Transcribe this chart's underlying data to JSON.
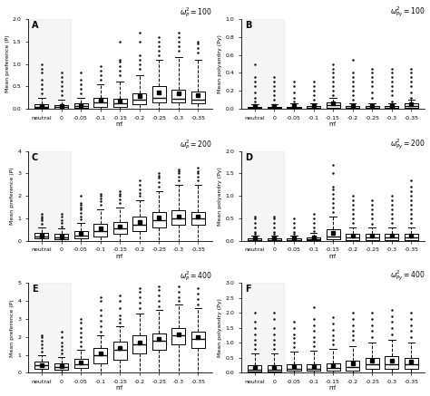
{
  "panels": [
    {
      "label": "A",
      "title": "$\\omega_P^2 = 100$",
      "ylabel": "Mean preference (P)",
      "ylim": [
        0,
        2.0
      ],
      "yticks": [
        0,
        0.5,
        1.0,
        1.5,
        2.0
      ]
    },
    {
      "label": "B",
      "title": "$\\omega_{Py}^2 = 100$",
      "ylabel": "Mean polyandry (Py)",
      "ylim": [
        0,
        1.0
      ],
      "yticks": [
        0.0,
        0.2,
        0.4,
        0.6,
        0.8,
        1.0
      ]
    },
    {
      "label": "C",
      "title": "$\\omega_P^2 = 200$",
      "ylabel": "Mean preference (P)",
      "ylim": [
        0,
        4.0
      ],
      "yticks": [
        0,
        1,
        2,
        3,
        4
      ]
    },
    {
      "label": "D",
      "title": "$\\omega_{Py}^2 = 200$",
      "ylabel": "Mean polyandry (Py)",
      "ylim": [
        0,
        2.0
      ],
      "yticks": [
        0.0,
        0.5,
        1.0,
        1.5,
        2.0
      ]
    },
    {
      "label": "E",
      "title": "$\\omega_P^2 = 400$",
      "ylabel": "Mean preference (P)",
      "ylim": [
        0,
        5.0
      ],
      "yticks": [
        0,
        1,
        2,
        3,
        4,
        5
      ]
    },
    {
      "label": "F",
      "title": "$\\omega_{Py}^2 = 400$",
      "ylabel": "Mean polyandry (Py)",
      "ylim": [
        0,
        3.0
      ],
      "yticks": [
        0.0,
        0.5,
        1.0,
        1.5,
        2.0,
        2.5,
        3.0
      ]
    }
  ],
  "categories": [
    "neutral",
    "0",
    "-0.05",
    "-0.1",
    "-0.15",
    "-0.2",
    "-0.25",
    "-0.3",
    "-0.35"
  ],
  "xlabel": "m'",
  "panel_data": {
    "A": {
      "medians": [
        0.05,
        0.04,
        0.06,
        0.15,
        0.12,
        0.2,
        0.25,
        0.22,
        0.2
      ],
      "q1": [
        0.02,
        0.01,
        0.02,
        0.05,
        0.05,
        0.1,
        0.15,
        0.15,
        0.13
      ],
      "q3": [
        0.1,
        0.08,
        0.12,
        0.25,
        0.22,
        0.35,
        0.5,
        0.42,
        0.38
      ],
      "whislo": [
        0.0,
        0.0,
        0.0,
        0.0,
        0.0,
        0.0,
        0.0,
        0.0,
        0.0
      ],
      "whishi": [
        0.25,
        0.2,
        0.25,
        0.55,
        0.6,
        0.75,
        1.1,
        1.15,
        1.1
      ],
      "means": [
        0.07,
        0.06,
        0.08,
        0.2,
        0.18,
        0.28,
        0.36,
        0.34,
        0.3
      ],
      "fliers_y": [
        [
          0.35,
          0.45,
          0.55,
          0.65,
          0.8,
          0.9,
          1.0
        ],
        [
          0.3,
          0.4,
          0.5,
          0.6,
          0.7,
          0.8
        ],
        [
          0.35,
          0.45,
          0.55,
          0.65,
          0.8
        ],
        [
          0.65,
          0.75,
          0.85,
          0.95
        ],
        [
          0.75,
          0.85,
          0.95,
          1.05,
          1.1,
          1.5
        ],
        [
          0.9,
          1.0,
          1.1,
          1.2,
          1.5,
          1.7
        ],
        [
          1.2,
          1.3,
          1.4,
          1.5,
          1.6
        ],
        [
          1.3,
          1.4,
          1.5,
          1.6,
          1.7
        ],
        [
          1.25,
          1.35,
          1.45,
          1.5
        ]
      ]
    },
    "B": {
      "medians": [
        0.01,
        0.01,
        0.01,
        0.01,
        0.04,
        0.01,
        0.01,
        0.01,
        0.03
      ],
      "q1": [
        0.0,
        0.0,
        0.0,
        0.0,
        0.01,
        0.0,
        0.0,
        0.0,
        0.01
      ],
      "q3": [
        0.02,
        0.02,
        0.02,
        0.03,
        0.07,
        0.03,
        0.03,
        0.03,
        0.06
      ],
      "whislo": [
        0.0,
        0.0,
        0.0,
        0.0,
        0.0,
        0.0,
        0.0,
        0.0,
        0.0
      ],
      "whishi": [
        0.05,
        0.05,
        0.06,
        0.06,
        0.12,
        0.06,
        0.06,
        0.06,
        0.1
      ],
      "means": [
        0.03,
        0.03,
        0.03,
        0.03,
        0.06,
        0.03,
        0.03,
        0.03,
        0.05
      ],
      "fliers_y": [
        [
          0.08,
          0.12,
          0.18,
          0.25,
          0.3,
          0.35,
          0.5
        ],
        [
          0.1,
          0.15,
          0.2,
          0.25,
          0.3,
          0.35
        ],
        [
          0.08,
          0.12,
          0.18,
          0.25,
          0.3
        ],
        [
          0.1,
          0.15,
          0.2,
          0.25,
          0.3
        ],
        [
          0.15,
          0.2,
          0.25,
          0.3,
          0.35,
          0.4,
          0.45,
          0.5
        ],
        [
          0.1,
          0.15,
          0.2,
          0.25,
          0.3,
          0.35,
          0.4,
          0.55
        ],
        [
          0.12,
          0.18,
          0.25,
          0.3,
          0.35,
          0.4,
          0.45
        ],
        [
          0.08,
          0.15,
          0.2,
          0.25,
          0.3,
          0.35,
          0.4,
          0.45
        ],
        [
          0.12,
          0.18,
          0.25,
          0.3,
          0.35,
          0.4,
          0.45
        ]
      ]
    },
    "C": {
      "medians": [
        0.2,
        0.15,
        0.25,
        0.45,
        0.55,
        0.7,
        0.9,
        1.0,
        1.0
      ],
      "q1": [
        0.1,
        0.08,
        0.12,
        0.2,
        0.3,
        0.45,
        0.6,
        0.7,
        0.7
      ],
      "q3": [
        0.35,
        0.3,
        0.45,
        0.75,
        0.85,
        1.1,
        1.3,
        1.35,
        1.3
      ],
      "whislo": [
        0.0,
        0.0,
        0.0,
        0.0,
        0.0,
        0.0,
        0.0,
        0.0,
        0.0
      ],
      "whishi": [
        0.6,
        0.55,
        0.8,
        1.4,
        1.5,
        1.8,
        2.2,
        2.5,
        2.5
      ],
      "means": [
        0.25,
        0.2,
        0.32,
        0.55,
        0.65,
        0.82,
        1.02,
        1.1,
        1.08
      ],
      "fliers_y": [
        [
          0.75,
          0.9,
          1.0,
          1.1,
          1.2
        ],
        [
          0.65,
          0.8,
          0.9,
          1.1,
          1.2
        ],
        [
          0.95,
          1.1,
          1.25,
          1.4,
          1.5,
          1.6,
          1.7,
          2.0
        ],
        [
          1.6,
          1.75,
          1.9,
          2.0,
          2.1
        ],
        [
          1.7,
          1.85,
          2.0,
          2.1,
          2.2
        ],
        [
          2.0,
          2.15,
          2.3,
          2.5,
          2.7
        ],
        [
          2.4,
          2.6,
          2.8,
          2.9,
          3.0
        ],
        [
          2.7,
          2.85,
          3.0,
          3.1,
          3.2
        ],
        [
          2.7,
          2.85,
          3.0,
          3.1,
          3.25
        ]
      ]
    },
    "D": {
      "medians": [
        0.02,
        0.02,
        0.02,
        0.03,
        0.1,
        0.08,
        0.08,
        0.08,
        0.08
      ],
      "q1": [
        0.01,
        0.01,
        0.01,
        0.01,
        0.03,
        0.02,
        0.02,
        0.02,
        0.02
      ],
      "q3": [
        0.05,
        0.05,
        0.05,
        0.08,
        0.25,
        0.15,
        0.15,
        0.15,
        0.15
      ],
      "whislo": [
        0.0,
        0.0,
        0.0,
        0.0,
        0.0,
        0.0,
        0.0,
        0.0,
        0.0
      ],
      "whishi": [
        0.12,
        0.12,
        0.12,
        0.18,
        0.55,
        0.3,
        0.3,
        0.3,
        0.3
      ],
      "means": [
        0.05,
        0.05,
        0.05,
        0.08,
        0.18,
        0.12,
        0.12,
        0.12,
        0.12
      ],
      "fliers_y": [
        [
          0.15,
          0.2,
          0.3,
          0.4,
          0.5,
          0.55
        ],
        [
          0.15,
          0.2,
          0.3,
          0.4,
          0.5,
          0.55
        ],
        [
          0.15,
          0.2,
          0.3,
          0.4,
          0.5
        ],
        [
          0.22,
          0.3,
          0.4,
          0.5,
          0.6
        ],
        [
          0.65,
          0.75,
          0.85,
          0.95,
          1.05,
          1.15,
          1.2,
          1.5,
          1.7
        ],
        [
          0.4,
          0.5,
          0.6,
          0.7,
          0.8,
          0.9,
          1.0
        ],
        [
          0.38,
          0.5,
          0.6,
          0.7,
          0.8,
          0.9
        ],
        [
          0.4,
          0.5,
          0.6,
          0.7,
          0.8,
          0.9,
          1.0
        ],
        [
          0.4,
          0.5,
          0.6,
          0.7,
          0.8,
          0.9,
          1.0,
          1.1,
          1.2,
          1.35
        ]
      ]
    },
    "E": {
      "medians": [
        0.4,
        0.3,
        0.5,
        1.0,
        1.3,
        1.6,
        1.8,
        2.1,
        1.9
      ],
      "q1": [
        0.2,
        0.15,
        0.25,
        0.55,
        0.75,
        1.1,
        1.3,
        1.6,
        1.4
      ],
      "q3": [
        0.65,
        0.55,
        0.8,
        1.4,
        1.75,
        2.1,
        2.2,
        2.5,
        2.3
      ],
      "whislo": [
        0.0,
        0.0,
        0.0,
        0.0,
        0.0,
        0.0,
        0.0,
        0.0,
        0.0
      ],
      "whishi": [
        1.0,
        0.9,
        1.3,
        2.1,
        2.6,
        3.3,
        3.5,
        3.8,
        3.6
      ],
      "means": [
        0.45,
        0.35,
        0.6,
        1.1,
        1.4,
        1.7,
        1.9,
        2.15,
        2.0
      ],
      "fliers_y": [
        [
          1.2,
          1.4,
          1.6,
          1.8,
          2.0,
          2.1
        ],
        [
          1.1,
          1.3,
          1.5,
          1.7,
          2.0,
          2.3
        ],
        [
          1.5,
          1.75,
          2.0,
          2.25,
          2.5,
          2.8,
          3.0
        ],
        [
          2.3,
          2.6,
          2.9,
          3.2,
          3.5,
          4.0,
          4.2
        ],
        [
          2.8,
          3.0,
          3.2,
          3.6,
          4.0,
          4.3
        ],
        [
          3.6,
          3.9,
          4.2,
          4.5,
          4.7
        ],
        [
          3.7,
          4.0,
          4.3,
          4.6,
          4.8
        ],
        [
          4.0,
          4.2,
          4.5,
          4.8
        ],
        [
          3.8,
          4.1,
          4.4,
          4.7
        ]
      ]
    },
    "F": {
      "medians": [
        0.1,
        0.1,
        0.12,
        0.12,
        0.15,
        0.2,
        0.28,
        0.3,
        0.28
      ],
      "q1": [
        0.05,
        0.05,
        0.06,
        0.06,
        0.06,
        0.08,
        0.12,
        0.14,
        0.12
      ],
      "q3": [
        0.25,
        0.25,
        0.28,
        0.3,
        0.32,
        0.4,
        0.5,
        0.55,
        0.5
      ],
      "whislo": [
        0.0,
        0.0,
        0.0,
        0.0,
        0.0,
        0.0,
        0.0,
        0.0,
        0.0
      ],
      "whishi": [
        0.65,
        0.65,
        0.7,
        0.75,
        0.8,
        0.9,
        1.0,
        1.1,
        1.0
      ],
      "means": [
        0.2,
        0.2,
        0.22,
        0.22,
        0.25,
        0.32,
        0.4,
        0.42,
        0.38
      ],
      "fliers_y": [
        [
          0.8,
          0.95,
          1.1,
          1.3,
          1.5,
          1.7,
          2.0
        ],
        [
          0.8,
          0.95,
          1.1,
          1.3,
          1.5,
          1.8,
          2.0
        ],
        [
          0.85,
          1.0,
          1.15,
          1.3,
          1.5,
          1.7
        ],
        [
          0.9,
          1.05,
          1.2,
          1.4,
          1.6,
          1.8,
          2.2
        ],
        [
          0.95,
          1.1,
          1.25,
          1.45,
          1.65,
          1.85
        ],
        [
          1.1,
          1.25,
          1.4,
          1.6,
          1.8,
          2.0
        ],
        [
          1.2,
          1.4,
          1.6,
          1.8,
          2.0
        ],
        [
          1.3,
          1.5,
          1.7,
          1.9,
          2.1
        ],
        [
          1.2,
          1.4,
          1.6,
          1.8,
          2.0
        ]
      ]
    }
  }
}
